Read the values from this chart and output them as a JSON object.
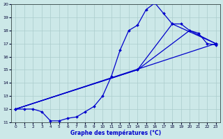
{
  "xlabel": "Graphe des températures (°C)",
  "xlim": [
    -0.5,
    23.5
  ],
  "ylim": [
    11,
    20
  ],
  "xticks": [
    0,
    1,
    2,
    3,
    4,
    5,
    6,
    7,
    8,
    9,
    10,
    11,
    12,
    13,
    14,
    15,
    16,
    17,
    18,
    19,
    20,
    21,
    22,
    23
  ],
  "yticks": [
    11,
    12,
    13,
    14,
    15,
    16,
    17,
    18,
    19,
    20
  ],
  "bg_color": "#cce8e8",
  "grid_color": "#aacccc",
  "line_color": "#0000cc",
  "line1_x": [
    0,
    1,
    2,
    3,
    4,
    5,
    6,
    7,
    8,
    9,
    10,
    11,
    12,
    13,
    14,
    15,
    16,
    17,
    18,
    19,
    20,
    21,
    22,
    23
  ],
  "line1_y": [
    12.0,
    12.0,
    12.0,
    11.8,
    11.1,
    11.1,
    11.3,
    11.4,
    11.8,
    12.2,
    13.0,
    14.5,
    16.5,
    18.0,
    18.4,
    19.6,
    20.1,
    19.3,
    18.5,
    18.5,
    18.0,
    17.8,
    17.0,
    16.9
  ],
  "line2_x": [
    0,
    23
  ],
  "line2_y": [
    12.0,
    17.0
  ],
  "line3_x": [
    0,
    14,
    20,
    23
  ],
  "line3_y": [
    12.0,
    15.0,
    18.0,
    17.0
  ],
  "line4_x": [
    0,
    14,
    18,
    23
  ],
  "line4_y": [
    12.0,
    15.0,
    18.5,
    17.0
  ]
}
